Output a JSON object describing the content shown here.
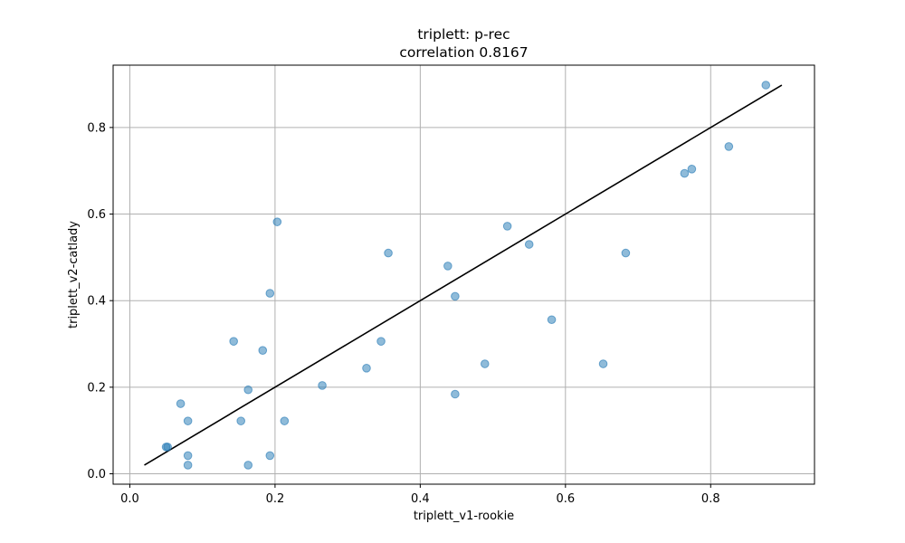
{
  "chart_data": {
    "type": "scatter",
    "title": "triplett: p-rec",
    "subtitle": "correlation 0.8167",
    "xlabel": "triplett_v1-rookie",
    "ylabel": "triplett_v2-catlady",
    "xlim": [
      -0.023,
      0.943
    ],
    "ylim": [
      -0.024,
      0.944
    ],
    "xticks": [
      0.0,
      0.2,
      0.4,
      0.6,
      0.8
    ],
    "xtick_labels": [
      "0.0",
      "0.2",
      "0.4",
      "0.6",
      "0.8"
    ],
    "yticks": [
      0.0,
      0.2,
      0.4,
      0.6,
      0.8
    ],
    "ytick_labels": [
      "0.0",
      "0.2",
      "0.4",
      "0.6",
      "0.8"
    ],
    "grid": true,
    "point_color": "#1f77b4",
    "line_color": "#000000",
    "points": [
      {
        "x": 0.05,
        "y": 0.062
      },
      {
        "x": 0.052,
        "y": 0.062
      },
      {
        "x": 0.07,
        "y": 0.162
      },
      {
        "x": 0.08,
        "y": 0.122
      },
      {
        "x": 0.08,
        "y": 0.042
      },
      {
        "x": 0.08,
        "y": 0.02
      },
      {
        "x": 0.143,
        "y": 0.306
      },
      {
        "x": 0.153,
        "y": 0.122
      },
      {
        "x": 0.163,
        "y": 0.194
      },
      {
        "x": 0.163,
        "y": 0.02
      },
      {
        "x": 0.183,
        "y": 0.285
      },
      {
        "x": 0.193,
        "y": 0.417
      },
      {
        "x": 0.193,
        "y": 0.042
      },
      {
        "x": 0.203,
        "y": 0.582
      },
      {
        "x": 0.213,
        "y": 0.122
      },
      {
        "x": 0.265,
        "y": 0.204
      },
      {
        "x": 0.326,
        "y": 0.244
      },
      {
        "x": 0.346,
        "y": 0.306
      },
      {
        "x": 0.356,
        "y": 0.51
      },
      {
        "x": 0.438,
        "y": 0.48
      },
      {
        "x": 0.448,
        "y": 0.41
      },
      {
        "x": 0.448,
        "y": 0.184
      },
      {
        "x": 0.489,
        "y": 0.254
      },
      {
        "x": 0.52,
        "y": 0.572
      },
      {
        "x": 0.55,
        "y": 0.53
      },
      {
        "x": 0.581,
        "y": 0.356
      },
      {
        "x": 0.652,
        "y": 0.254
      },
      {
        "x": 0.683,
        "y": 0.51
      },
      {
        "x": 0.764,
        "y": 0.694
      },
      {
        "x": 0.774,
        "y": 0.704
      },
      {
        "x": 0.825,
        "y": 0.756
      },
      {
        "x": 0.876,
        "y": 0.898
      }
    ],
    "reference_line": {
      "x": [
        0.02,
        0.898
      ],
      "y": [
        0.02,
        0.898
      ]
    }
  }
}
